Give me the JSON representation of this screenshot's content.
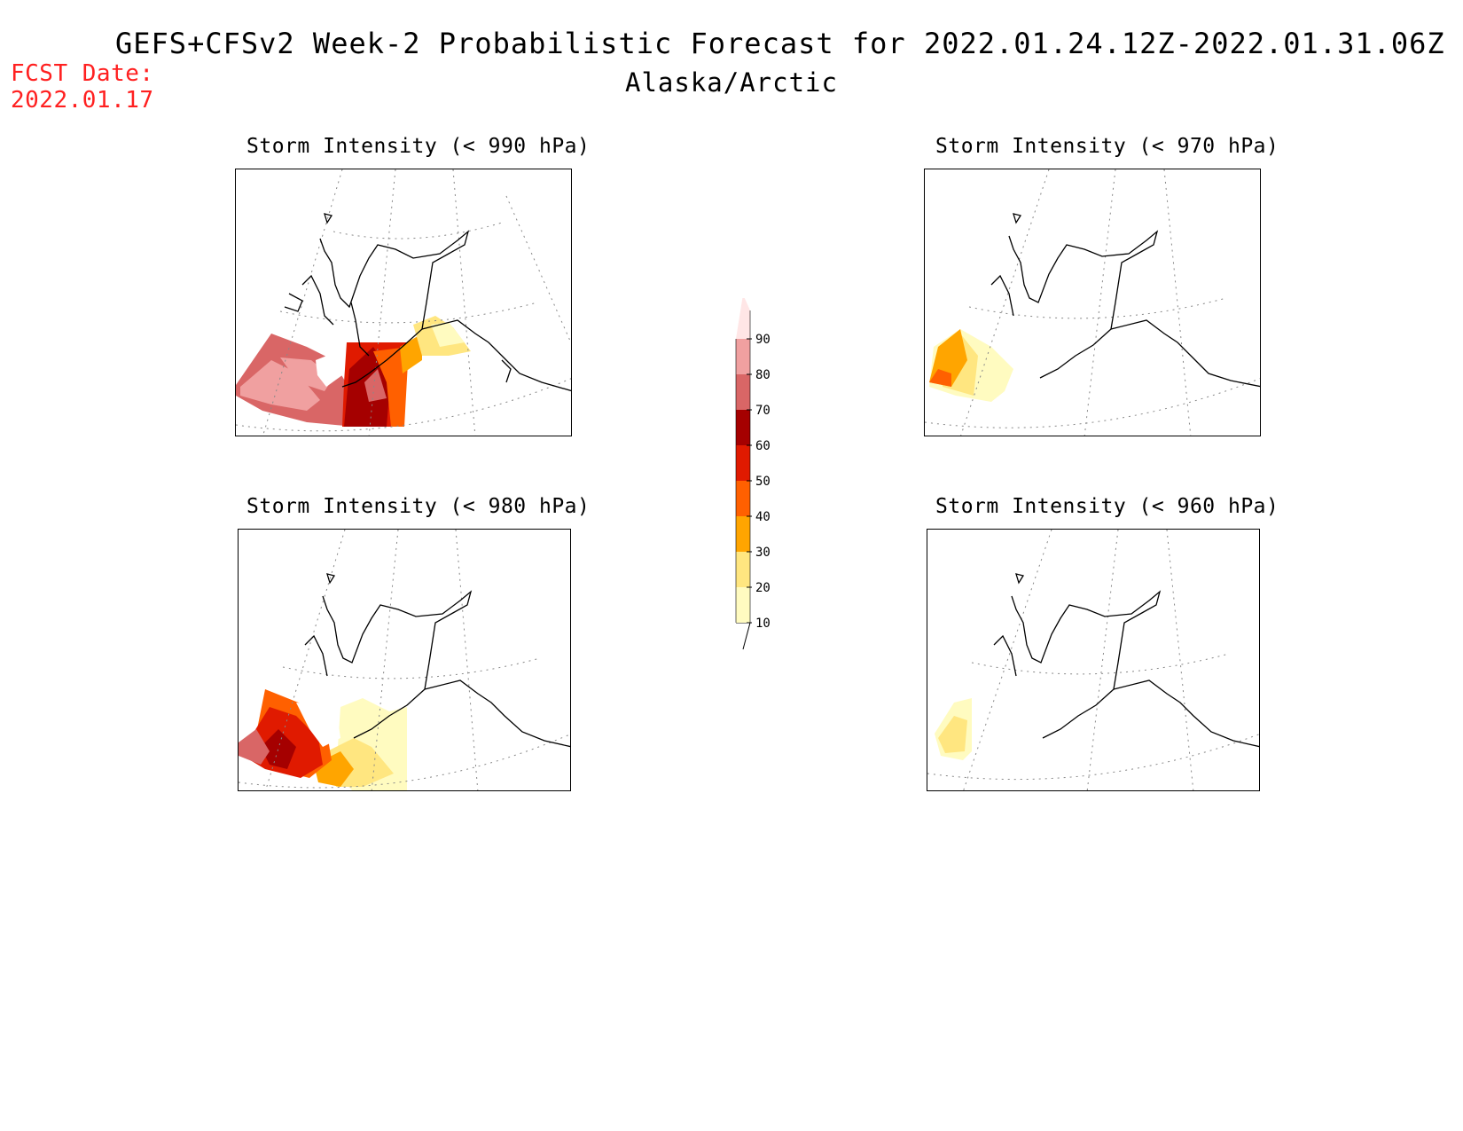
{
  "header": {
    "title": "GEFS+CFSv2 Week-2 Probabilistic Forecast for 2022.01.24.12Z-2022.01.31.06Z",
    "subtitle": "Alaska/Arctic",
    "fcst_label": "FCST Date:",
    "fcst_date": "2022.01.17"
  },
  "panels": [
    {
      "id": "p990",
      "title": "Storm Intensity (< 990 hPa)"
    },
    {
      "id": "p970",
      "title": "Storm Intensity (< 970 hPa)"
    },
    {
      "id": "p980",
      "title": "Storm Intensity (< 980 hPa)"
    },
    {
      "id": "p960",
      "title": "Storm Intensity (< 960 hPa)"
    }
  ],
  "colorbar": {
    "levels": [
      "10",
      "20",
      "30",
      "40",
      "50",
      "60",
      "70",
      "80",
      "90"
    ],
    "colors": [
      "#fffbc0",
      "#ffe680",
      "#ffa500",
      "#ff6000",
      "#e01a00",
      "#a50000",
      "#d96666",
      "#f0a0a0",
      "#ffe6e6"
    ]
  }
}
